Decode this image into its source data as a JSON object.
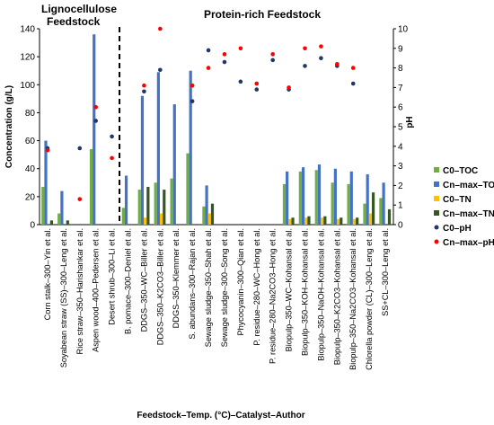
{
  "chart_data": {
    "type": "bar",
    "xlabel": "Feedstock–Temp. (°C)–Catalyst–Author",
    "ylabel": "Concentration (g/L)",
    "y2label": "pH",
    "ylim": [
      0,
      140
    ],
    "yticks": [
      0,
      20,
      40,
      60,
      80,
      100,
      120,
      140
    ],
    "y2lim": [
      0,
      10
    ],
    "y2ticks": [
      0,
      1,
      2,
      3,
      4,
      5,
      6,
      7,
      8,
      9,
      10
    ],
    "grid": false,
    "legend_position": "right",
    "region_labels": [
      "Lignocellulose\nFeedstock",
      "Protein-rich Feedstock"
    ],
    "divider_after_index": 5,
    "categories": [
      "Corn stalk–300–Yin et al.",
      "Soyabean straw (SS)–300–Leng et al.",
      "Rice straw–350–Harishankar et al.",
      "Aspen wood–400–Pedersen et al.",
      "Desert shrub–300–Li et al.",
      "B. pomace–300–Deniel et al.",
      "DDGS–350–WC–Biller et al.",
      "DDGS–350–K2CO3–Biller et al.",
      "DDGS–350–Klemmer et al.",
      "S. abundans–300–Rajan et al.",
      "Sewage sludge–350–Shah et al.",
      "Sewage sludge–300–Song et al.",
      "Phycocyanin–300–Qian et al.",
      "P. residue–280–WC–Hong et al.",
      "P. residue–280–Na2CO3–Hong et al.",
      "Biopulp–350–WC–Kohansal et al.",
      "Biopulp–350–KOH–Kohansal et al.",
      "Biopulp–350–NaOH–Kohansal et al.",
      "Biopulp–350–K2CO3–Kohansal et al.",
      "Biopulp–350–Na2CO3–Kohansal et al.",
      "Chlorella powder (CL)–300–Leng et al.",
      "SS+CL–300–Leng et al."
    ],
    "series": [
      {
        "name": "C0–TOC",
        "kind": "bar",
        "axis": "left",
        "color": "#70ad47",
        "values": [
          27,
          8,
          null,
          54,
          null,
          12,
          25,
          30,
          33,
          51,
          13,
          null,
          null,
          null,
          null,
          29,
          38,
          39,
          30,
          29,
          15,
          19
        ]
      },
      {
        "name": "Cn–max–TOC",
        "kind": "bar",
        "axis": "left",
        "color": "#4472c4",
        "values": [
          60,
          24,
          null,
          136,
          null,
          35,
          92,
          109,
          86,
          110,
          28,
          null,
          null,
          null,
          null,
          38,
          41,
          43,
          40,
          38,
          36,
          30
        ]
      },
      {
        "name": "C0–TN",
        "kind": "bar",
        "axis": "left",
        "color": "#ffc000",
        "values": [
          null,
          null,
          null,
          null,
          null,
          null,
          5,
          8,
          null,
          null,
          8,
          null,
          null,
          null,
          null,
          4,
          5,
          5,
          4,
          4,
          8,
          null
        ]
      },
      {
        "name": "Cn–max–TN",
        "kind": "bar",
        "axis": "left",
        "color": "#375623",
        "values": [
          3,
          3,
          null,
          null,
          null,
          null,
          27,
          25,
          null,
          null,
          15,
          null,
          null,
          null,
          null,
          5,
          6,
          6,
          5,
          5,
          23,
          11
        ]
      },
      {
        "name": "C0–pH",
        "kind": "point",
        "axis": "right",
        "color": "#1f3864",
        "values": [
          3.9,
          null,
          3.9,
          5.3,
          4.5,
          null,
          6.8,
          7.9,
          null,
          6.3,
          8.9,
          8.3,
          7.3,
          6.9,
          8.4,
          6.9,
          8.1,
          8.5,
          8.1,
          7.2,
          null,
          null
        ]
      },
      {
        "name": "Cn–max–pH",
        "kind": "point",
        "axis": "right",
        "color": "#ff0000",
        "values": [
          3.8,
          null,
          1.3,
          6,
          3.4,
          null,
          7.1,
          10,
          null,
          7.1,
          8,
          8.7,
          9,
          7.2,
          8.7,
          7,
          9,
          9.1,
          8.2,
          8,
          null,
          null
        ]
      }
    ]
  }
}
